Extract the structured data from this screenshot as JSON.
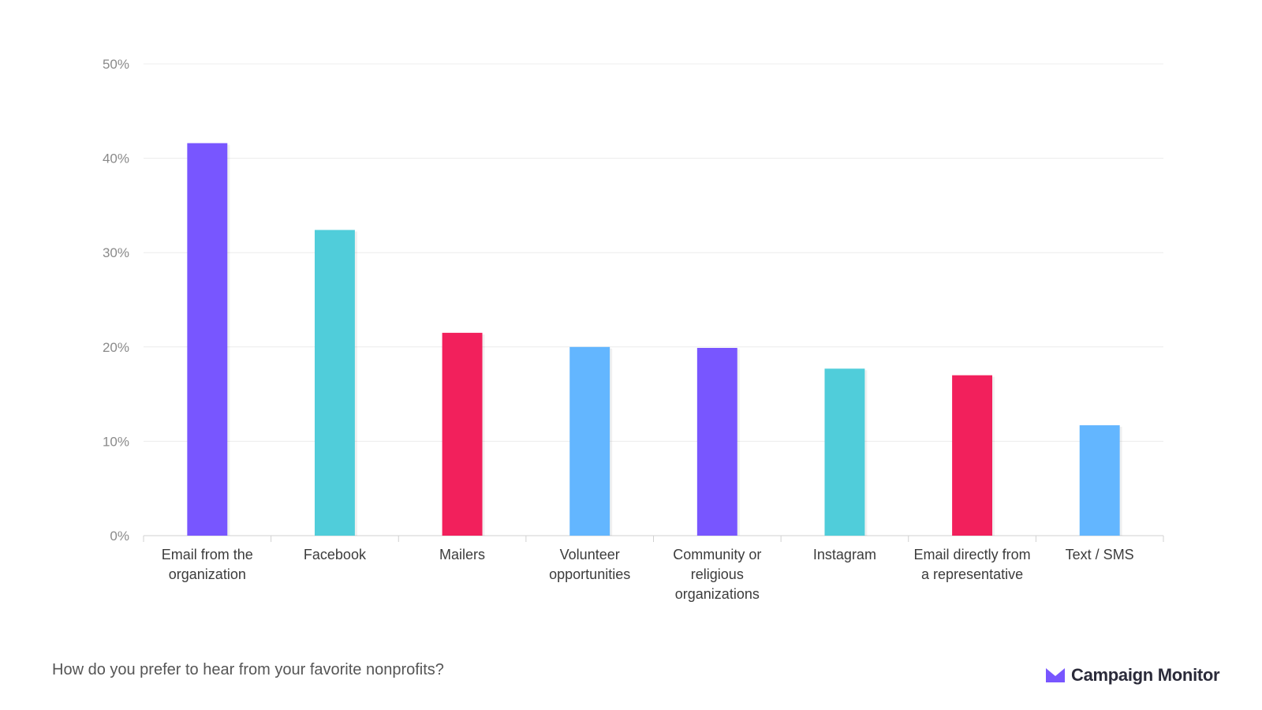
{
  "chart_data": {
    "type": "bar",
    "title": "",
    "xlabel": "",
    "ylabel": "",
    "ylim": [
      0,
      50
    ],
    "yticks": [
      "0%",
      "10%",
      "20%",
      "30%",
      "40%",
      "50%"
    ],
    "grid": true,
    "categories": [
      [
        "Email from the",
        "organization"
      ],
      [
        "Facebook"
      ],
      [
        "Mailers"
      ],
      [
        "Volunteer",
        "opportunities"
      ],
      [
        "Community or",
        "religious",
        "organizations"
      ],
      [
        "Instagram"
      ],
      [
        "Email directly from",
        "a representative"
      ],
      [
        "Text / SMS"
      ]
    ],
    "values": [
      41.6,
      32.4,
      21.5,
      20.0,
      19.9,
      17.7,
      17.0,
      11.7
    ],
    "colors": [
      "#7856ff",
      "#50cdda",
      "#f2205c",
      "#63b6ff",
      "#7856ff",
      "#50cdda",
      "#f2205c",
      "#63b6ff"
    ]
  },
  "caption": "How do you prefer to hear from your favorite nonprofits?",
  "brand": {
    "name": "Campaign Monitor",
    "logo_icon": "envelope-icon",
    "color": "#7856ff"
  }
}
